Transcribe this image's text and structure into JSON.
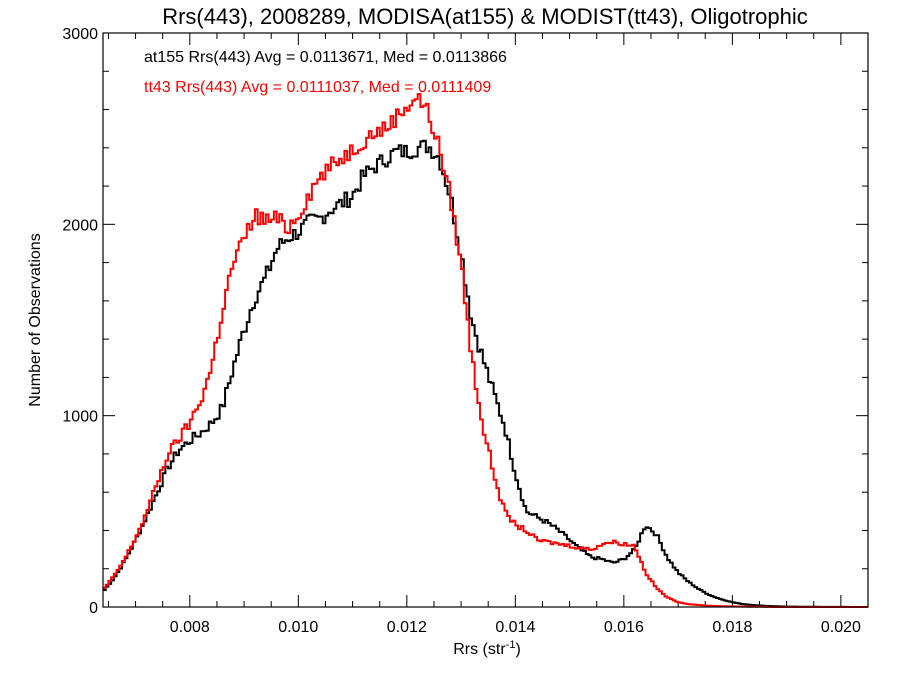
{
  "chart_data": {
    "type": "line",
    "title": "Rrs(443), 2008289, MODISA(at155) & MODIST(tt43), Oligotrophic",
    "xlabel_main": "Rrs (str",
    "xlabel_sup": "-1",
    "xlabel_close": ")",
    "ylabel": "Number of Observations",
    "xlim": [
      0.0064,
      0.0205
    ],
    "ylim": [
      0,
      3000
    ],
    "xticks": [
      0.008,
      0.01,
      0.012,
      0.014,
      0.016,
      0.018,
      0.02
    ],
    "xtick_labels": [
      "0.008",
      "0.010",
      "0.012",
      "0.014",
      "0.016",
      "0.018",
      "0.020"
    ],
    "yticks": [
      0,
      1000,
      2000,
      3000
    ],
    "ytick_labels": [
      "0",
      "1000",
      "2000",
      "3000"
    ],
    "x_minor_step": 0.0005,
    "y_minor_step": 200,
    "grid": false,
    "series": [
      {
        "name": "at155",
        "color": "#000000",
        "annotation": "at155 Rrs(443) Avg = 0.0113671, Med = 0.0113866",
        "x": [
          0.0064,
          0.0066,
          0.0068,
          0.007,
          0.0072,
          0.0074,
          0.0076,
          0.0078,
          0.008,
          0.0082,
          0.0084,
          0.0086,
          0.0088,
          0.009,
          0.0092,
          0.0094,
          0.0096,
          0.0098,
          0.01,
          0.0102,
          0.0104,
          0.0106,
          0.0108,
          0.011,
          0.0112,
          0.0114,
          0.0116,
          0.0118,
          0.012,
          0.0122,
          0.0124,
          0.0126,
          0.0128,
          0.013,
          0.0132,
          0.0134,
          0.0136,
          0.0138,
          0.014,
          0.0142,
          0.0144,
          0.0146,
          0.0148,
          0.015,
          0.0152,
          0.0154,
          0.0156,
          0.0158,
          0.016,
          0.0162,
          0.0164,
          0.0166,
          0.0168,
          0.017,
          0.0172,
          0.0174,
          0.0176,
          0.0178,
          0.018,
          0.0182,
          0.0184,
          0.0186,
          0.0188,
          0.019,
          0.0195,
          0.0205
        ],
        "y": [
          80,
          150,
          240,
          350,
          470,
          600,
          730,
          820,
          870,
          910,
          960,
          1040,
          1250,
          1450,
          1620,
          1720,
          1870,
          1930,
          1960,
          2010,
          2030,
          2080,
          2110,
          2150,
          2250,
          2300,
          2340,
          2380,
          2380,
          2400,
          2410,
          2350,
          2150,
          1850,
          1500,
          1300,
          1120,
          950,
          700,
          500,
          470,
          440,
          400,
          350,
          300,
          260,
          250,
          230,
          250,
          300,
          430,
          380,
          260,
          180,
          130,
          90,
          60,
          40,
          25,
          15,
          10,
          6,
          4,
          2,
          1,
          0
        ]
      },
      {
        "name": "tt43",
        "color": "#ff0000",
        "annotation": "tt43 Rrs(443) Avg = 0.0111037, Med = 0.0111409",
        "x": [
          0.0064,
          0.0066,
          0.0068,
          0.007,
          0.0072,
          0.0074,
          0.0076,
          0.0078,
          0.008,
          0.0082,
          0.0084,
          0.0086,
          0.0088,
          0.009,
          0.0092,
          0.0094,
          0.0096,
          0.0098,
          0.01,
          0.0102,
          0.0104,
          0.0106,
          0.0108,
          0.011,
          0.0112,
          0.0114,
          0.0116,
          0.0118,
          0.012,
          0.0122,
          0.0124,
          0.0126,
          0.0128,
          0.013,
          0.0132,
          0.0134,
          0.0136,
          0.0138,
          0.014,
          0.0142,
          0.0144,
          0.0146,
          0.0148,
          0.015,
          0.0152,
          0.0154,
          0.0156,
          0.0158,
          0.016,
          0.0162,
          0.0164,
          0.0166,
          0.0168,
          0.017,
          0.0172,
          0.0174,
          0.0176,
          0.0178,
          0.018,
          0.0182,
          0.0184,
          0.0186,
          0.0188,
          0.019,
          0.0195,
          0.0205
        ],
        "y": [
          90,
          160,
          250,
          360,
          490,
          650,
          800,
          880,
          960,
          1080,
          1250,
          1550,
          1800,
          1920,
          2050,
          2020,
          2030,
          1980,
          2050,
          2160,
          2250,
          2300,
          2350,
          2390,
          2440,
          2480,
          2500,
          2560,
          2620,
          2670,
          2580,
          2400,
          2150,
          1800,
          1300,
          950,
          700,
          500,
          430,
          400,
          350,
          340,
          330,
          320,
          310,
          300,
          330,
          340,
          330,
          320,
          180,
          100,
          50,
          25,
          15,
          10,
          6,
          4,
          3,
          2,
          1,
          1,
          0,
          0,
          0,
          0
        ]
      }
    ]
  }
}
